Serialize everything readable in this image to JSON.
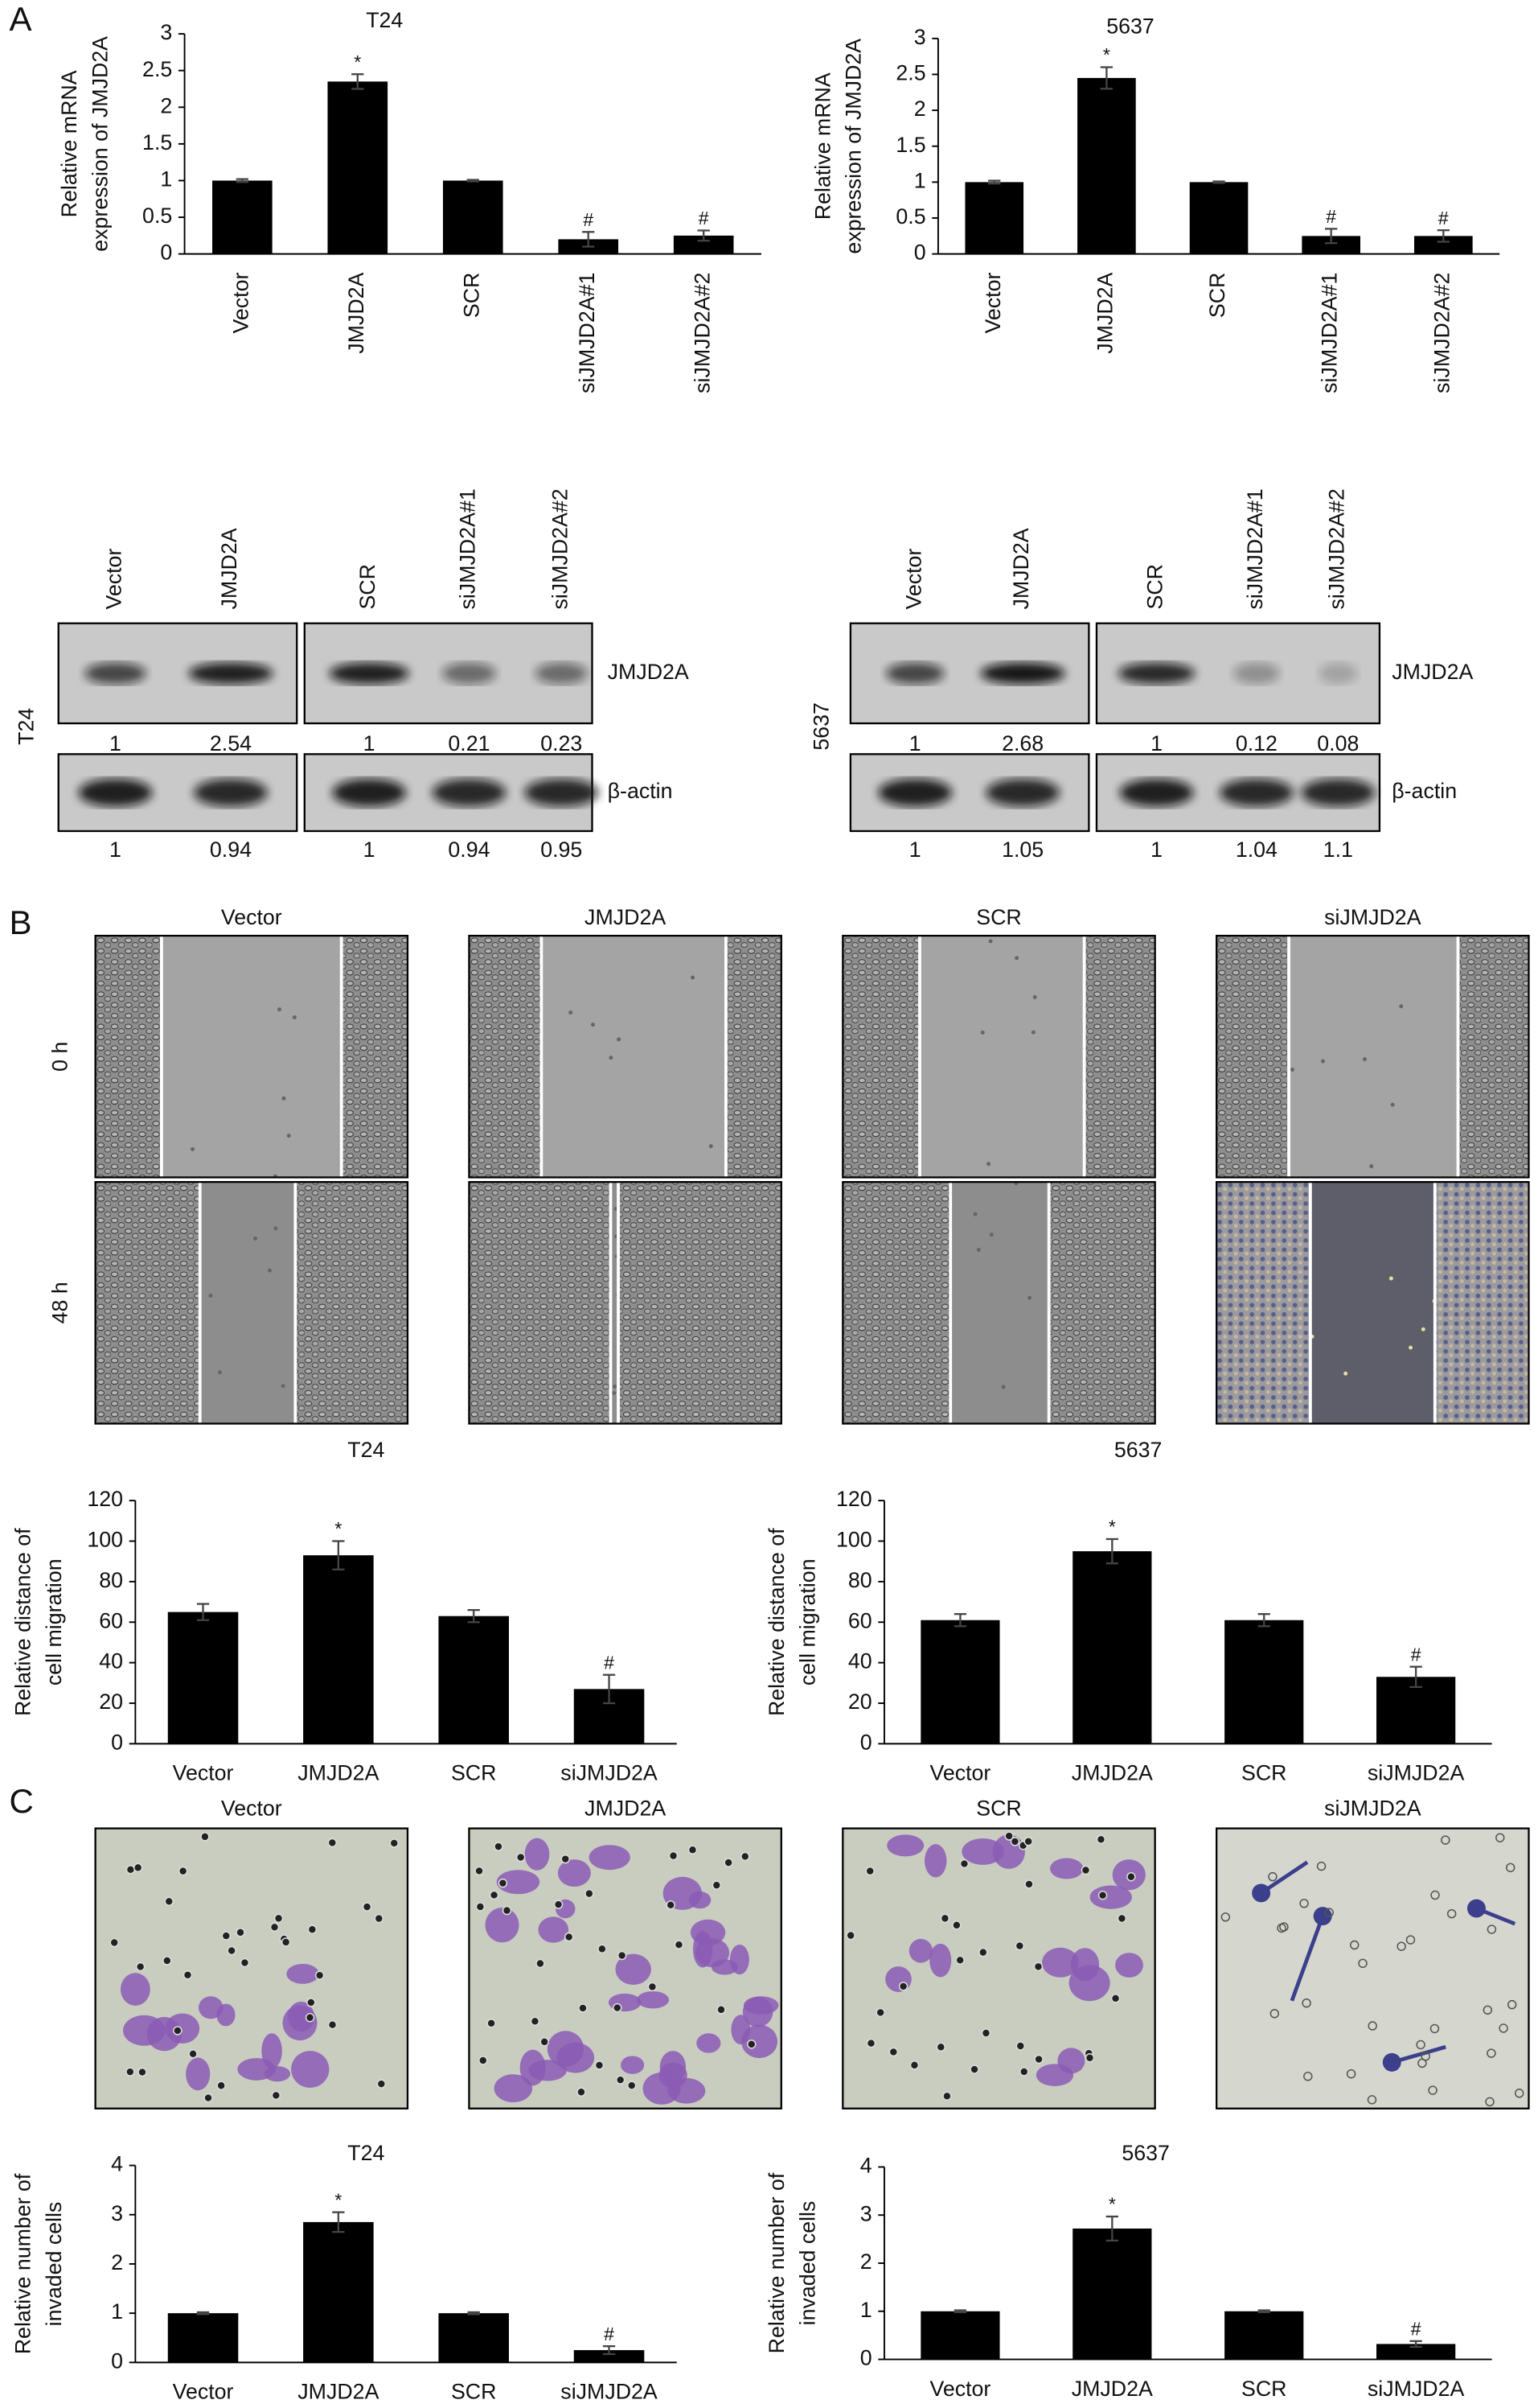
{
  "panel_labels": [
    "A",
    "B",
    "C"
  ],
  "chart_data": [
    {
      "type": "bar",
      "title": "T24",
      "ylabel": [
        "Relative mRNA",
        "expression of JMJD2A"
      ],
      "categories": [
        "Vector",
        "JMJD2A",
        "SCR",
        "siJMJD2A#1",
        "siJMJD2A#2"
      ],
      "values": [
        1,
        2.35,
        1,
        0.2,
        0.25
      ],
      "errors": [
        0.02,
        0.1,
        0.01,
        0.1,
        0.07
      ],
      "annotations": [
        null,
        "*",
        null,
        "#",
        "#"
      ],
      "color": "#000000",
      "ylim": [
        0,
        3
      ],
      "yticks": [
        0,
        0.5,
        1,
        1.5,
        2,
        2.5,
        3
      ]
    },
    {
      "type": "bar",
      "title": "5637",
      "ylabel": [
        "Relative mRNA",
        "expression of JMJD2A"
      ],
      "categories": [
        "Vector",
        "JMJD2A",
        "SCR",
        "siJMJD2A#1",
        "siJMJD2A#2"
      ],
      "values": [
        1,
        2.45,
        1,
        0.25,
        0.25
      ],
      "errors": [
        0.02,
        0.15,
        0.01,
        0.1,
        0.08
      ],
      "annotations": [
        null,
        "*",
        null,
        "#",
        "#"
      ],
      "color": "#000000",
      "ylim": [
        0,
        3
      ],
      "yticks": [
        0,
        0.5,
        1,
        1.5,
        2,
        2.5,
        3
      ]
    },
    {
      "type": "bar",
      "title": "T24",
      "ylabel": [
        "Relative distance of",
        "cell migration"
      ],
      "categories": [
        "Vector",
        "JMJD2A",
        "SCR",
        "siJMJD2A"
      ],
      "values": [
        65,
        93,
        63,
        27
      ],
      "errors": [
        4,
        7,
        3,
        7
      ],
      "annotations": [
        null,
        "*",
        null,
        "#"
      ],
      "color": "#000000",
      "ylim": [
        0,
        120
      ],
      "yticks": [
        0,
        20,
        40,
        60,
        80,
        100,
        120
      ]
    },
    {
      "type": "bar",
      "title": "5637",
      "ylabel": [
        "Relative distance of",
        "cell migration"
      ],
      "categories": [
        "Vector",
        "JMJD2A",
        "SCR",
        "siJMJD2A"
      ],
      "values": [
        61,
        95,
        61,
        33
      ],
      "errors": [
        3,
        6,
        3,
        5
      ],
      "annotations": [
        null,
        "*",
        null,
        "#"
      ],
      "color": "#000000",
      "ylim": [
        0,
        120
      ],
      "yticks": [
        0,
        20,
        40,
        60,
        80,
        100,
        120
      ]
    },
    {
      "type": "bar",
      "title": "T24",
      "ylabel": [
        "Relative number of",
        "invaded cells"
      ],
      "categories": [
        "Vector",
        "JMJD2A",
        "SCR",
        "siJMJD2A"
      ],
      "values": [
        1,
        2.85,
        1,
        0.25
      ],
      "errors": [
        0.02,
        0.2,
        0.02,
        0.08
      ],
      "annotations": [
        null,
        "*",
        null,
        "#"
      ],
      "color": "#000000",
      "ylim": [
        0,
        4
      ],
      "yticks": [
        0,
        1,
        2,
        3,
        4
      ]
    },
    {
      "type": "bar",
      "title": "5637",
      "ylabel": [
        "Relative number of",
        "invaded cells"
      ],
      "categories": [
        "Vector",
        "JMJD2A",
        "SCR",
        "siJMJD2A"
      ],
      "values": [
        1,
        2.72,
        1,
        0.32
      ],
      "errors": [
        0.02,
        0.25,
        0.02,
        0.06
      ],
      "annotations": [
        null,
        "*",
        null,
        "#"
      ],
      "color": "#000000",
      "ylim": [
        0,
        4
      ],
      "yticks": [
        0,
        1,
        2,
        3,
        4
      ]
    }
  ],
  "western_blots": [
    {
      "cell_line": "T24",
      "lanes": [
        "Vector",
        "JMJD2A",
        "SCR",
        "siJMJD2A#1",
        "siJMJD2A#2"
      ],
      "rows": [
        {
          "protein": "JMJD2A",
          "quantification": [
            1,
            2.54,
            1,
            0.21,
            0.23
          ]
        },
        {
          "protein": "β-actin",
          "quantification": [
            1,
            0.94,
            1,
            0.94,
            0.95
          ]
        }
      ]
    },
    {
      "cell_line": "5637",
      "lanes": [
        "Vector",
        "JMJD2A",
        "SCR",
        "siJMJD2A#1",
        "siJMJD2A#2"
      ],
      "rows": [
        {
          "protein": "JMJD2A",
          "quantification": [
            1,
            2.68,
            1,
            0.12,
            0.08
          ]
        },
        {
          "protein": "β-actin",
          "quantification": [
            1,
            1.05,
            1,
            1.04,
            1.1
          ]
        }
      ]
    }
  ],
  "wound_healing": {
    "conditions": [
      "Vector",
      "JMJD2A",
      "SCR",
      "siJMJD2A"
    ],
    "timepoints": [
      "0 h",
      "48 h"
    ]
  },
  "invasion": {
    "conditions": [
      "Vector",
      "JMJD2A",
      "SCR",
      "siJMJD2A"
    ]
  }
}
